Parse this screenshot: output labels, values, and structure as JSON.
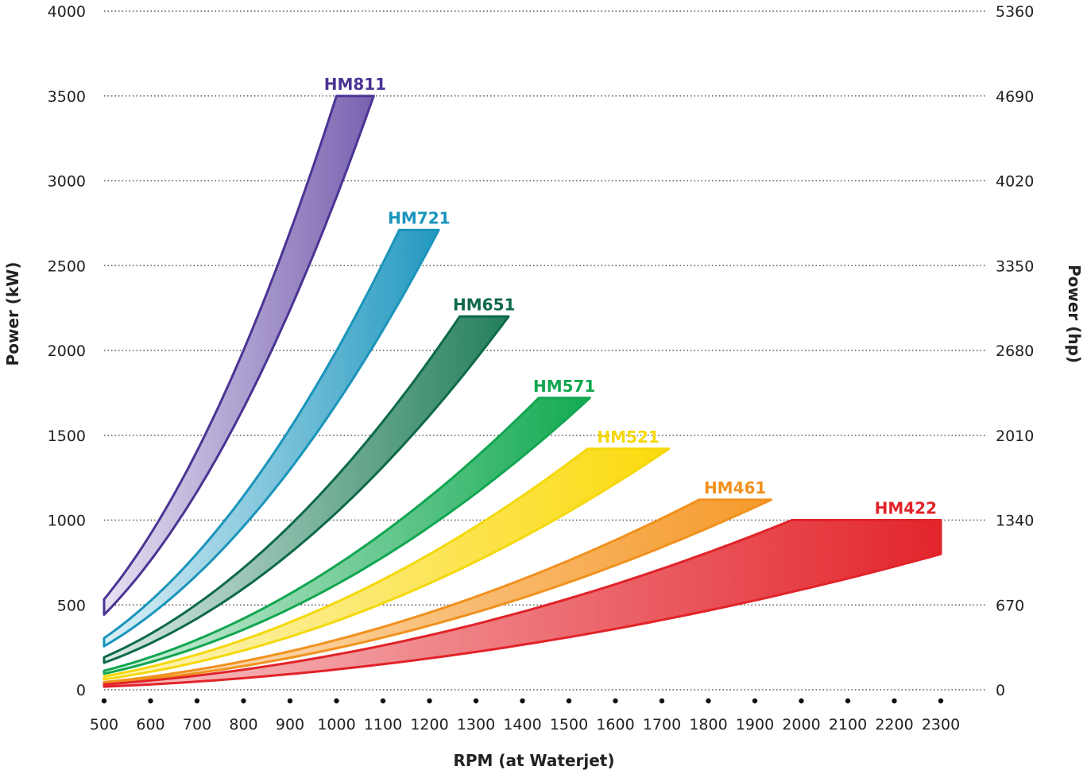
{
  "chart_data": {
    "type": "area",
    "xlabel": "RPM (at Waterjet)",
    "ylabel": "Power (kW)",
    "ylabel_right": "Power (hp)",
    "xlim": [
      500,
      2300
    ],
    "ylim": [
      0,
      4000
    ],
    "x_ticks": [
      "500",
      "600",
      "700",
      "800",
      "900",
      "1000",
      "1100",
      "1200",
      "1300",
      "1400",
      "1500",
      "1600",
      "1700",
      "1800",
      "1900",
      "2000",
      "2100",
      "2200",
      "2300"
    ],
    "y_ticks_left": [
      "0",
      "500",
      "1000",
      "1500",
      "2000",
      "2500",
      "3000",
      "3500",
      "4000"
    ],
    "y_ticks_right": [
      "0",
      "670",
      "1340",
      "2010",
      "2680",
      "3350",
      "4020",
      "4690",
      "5360"
    ],
    "grid": true,
    "series": [
      {
        "name": "HM811",
        "color": "#4b3494",
        "light": "#e6e1f2",
        "dark": "#7862b0",
        "lower_k": 0.00342,
        "upper_k": 0.00437,
        "start_x": 500,
        "end_x": 1000,
        "end_y": 3500,
        "cap_x": 1080
      },
      {
        "name": "HM721",
        "color": "#1a94bb",
        "light": "#ddf1f7",
        "dark": "#2298c0",
        "lower_k": 0.00196,
        "upper_k": 0.00252,
        "start_x": 500,
        "end_x": 1135,
        "end_y": 2710,
        "cap_x": 1220
      },
      {
        "name": "HM651",
        "color": "#0e6a48",
        "light": "#dcebe5",
        "dark": "#237f5c",
        "lower_k": 0.00118,
        "upper_k": 0.00158,
        "start_x": 500,
        "end_x": 1265,
        "end_y": 2200,
        "cap_x": 1370
      },
      {
        "name": "HM571",
        "color": "#11a650",
        "light": "#daf1e2",
        "dark": "#12aa52",
        "lower_k": 0.00065,
        "upper_k": 0.00088,
        "start_x": 500,
        "end_x": 1435,
        "end_y": 1720,
        "cap_x": 1545
      },
      {
        "name": "HM521",
        "color": "#f5d80c",
        "light": "#fdf5c4",
        "dark": "#fbda0c",
        "lower_k": 0.00043,
        "upper_k": 0.00062,
        "start_x": 500,
        "end_x": 1540,
        "end_y": 1420,
        "cap_x": 1715
      },
      {
        "name": "HM461",
        "color": "#f0911e",
        "light": "#fde4c8",
        "dark": "#f59a2a",
        "lower_k": 0.000185,
        "upper_k": 0.000265,
        "start_x": 500,
        "end_x": 1780,
        "end_y": 1120,
        "cap_x": 1935
      },
      {
        "name": "HM422",
        "color": "#e12329",
        "light": "#f7c5c7",
        "dark": "#e3252c",
        "lower_k": 6.63e-05,
        "upper_k": 0.000121,
        "start_x": 500,
        "end_x": 1980,
        "end_y": 1000,
        "cap_x": 2300
      }
    ]
  }
}
